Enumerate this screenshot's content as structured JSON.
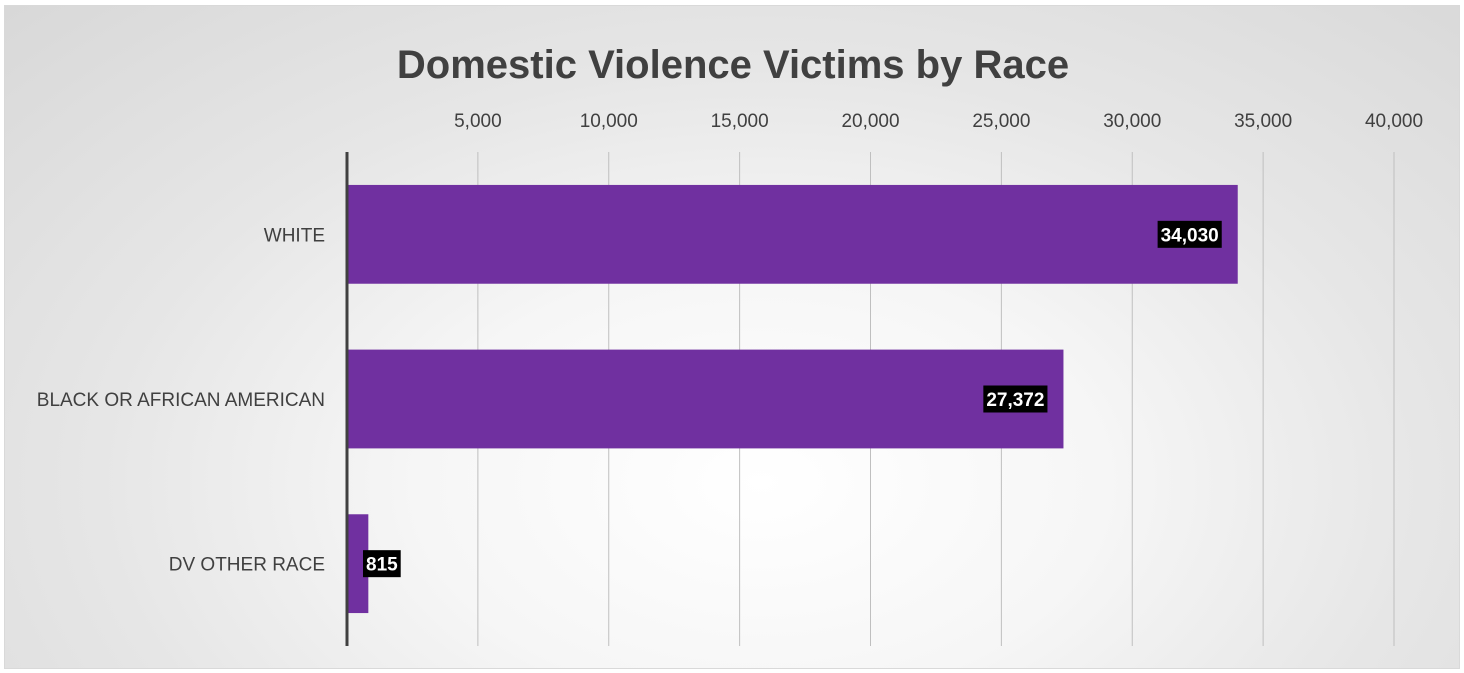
{
  "chart_data": {
    "type": "bar",
    "orientation": "horizontal",
    "title": "Domestic Violence Victims by Race",
    "xlabel": "",
    "ylabel": "",
    "categories": [
      "WHITE",
      "BLACK OR AFRICAN AMERICAN",
      "DV OTHER RACE"
    ],
    "values": [
      34030,
      27372,
      815
    ],
    "data_labels": [
      "34,030",
      "27,372",
      "815"
    ],
    "xlim": [
      0,
      40000
    ],
    "xticks": [
      5000,
      10000,
      15000,
      20000,
      25000,
      30000,
      35000,
      40000
    ],
    "xtick_labels": [
      "5,000",
      "10,000",
      "15,000",
      "20,000",
      "25,000",
      "30,000",
      "35,000",
      "40,000"
    ],
    "x_axis_position": "top",
    "grid": true,
    "legend": "none",
    "bar_color": "#7030a0",
    "label_background": "#000000",
    "label_color": "#ffffff"
  }
}
